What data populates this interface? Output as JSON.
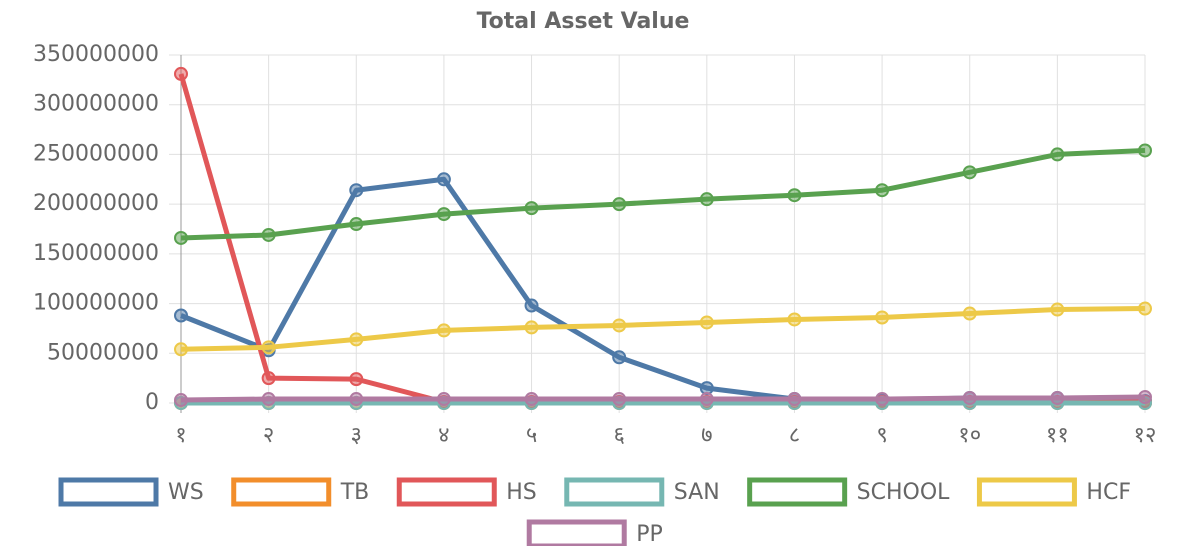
{
  "chart_data": {
    "type": "line",
    "title": "Total Asset Value",
    "categories": [
      "१",
      "२",
      "३",
      "४",
      "५",
      "६",
      "७",
      "८",
      "९",
      "१०",
      "११",
      "१२"
    ],
    "ylim": [
      0,
      350000000
    ],
    "yticks": [
      0,
      50000000,
      100000000,
      150000000,
      200000000,
      250000000,
      300000000,
      350000000
    ],
    "grid": true,
    "legend": "bottom",
    "series": [
      {
        "name": "WS",
        "color": "#4e79a7",
        "values": [
          88000000,
          53000000,
          214000000,
          225000000,
          98000000,
          46000000,
          15000000,
          4000000,
          3000000,
          5000000,
          5000000,
          2000000
        ]
      },
      {
        "name": "TB",
        "color": "#f28e2b",
        "values": [
          0,
          0,
          0,
          0,
          0,
          0,
          0,
          0,
          0,
          0,
          0,
          0
        ]
      },
      {
        "name": "HS",
        "color": "#e15759",
        "values": [
          331000000,
          25000000,
          24000000,
          1000000,
          1000000,
          1000000,
          1000000,
          1000000,
          1000000,
          1000000,
          1000000,
          1000000
        ]
      },
      {
        "name": "SAN",
        "color": "#76b7b2",
        "values": [
          0,
          0,
          0,
          0,
          0,
          0,
          0,
          0,
          0,
          0,
          0,
          0
        ]
      },
      {
        "name": "SCHOOL",
        "color": "#59a14f",
        "values": [
          166000000,
          169000000,
          180000000,
          190000000,
          196000000,
          200000000,
          205000000,
          209000000,
          214000000,
          232000000,
          250000000,
          254000000
        ]
      },
      {
        "name": "HCF",
        "color": "#edc948",
        "values": [
          54000000,
          56000000,
          64000000,
          73000000,
          76000000,
          78000000,
          81000000,
          84000000,
          86000000,
          90000000,
          94000000,
          95000000
        ]
      },
      {
        "name": "PP",
        "color": "#b07aa1",
        "values": [
          3000000,
          4000000,
          4000000,
          4000000,
          4000000,
          4000000,
          4000000,
          4000000,
          4000000,
          5000000,
          5000000,
          6000000
        ]
      }
    ]
  }
}
